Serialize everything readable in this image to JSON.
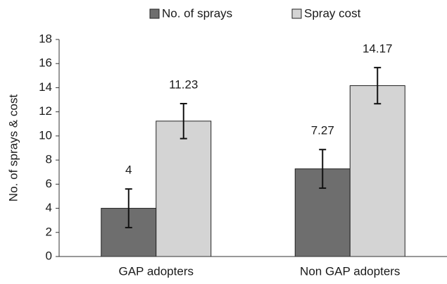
{
  "chart_data": {
    "type": "bar",
    "categories": [
      "GAP adopters",
      "Non GAP adopters"
    ],
    "series": [
      {
        "name": "No. of sprays",
        "color": "#6e6e6e",
        "values": [
          4,
          7.27
        ],
        "errors": [
          1.6,
          1.6
        ]
      },
      {
        "name": "Spray cost",
        "color": "#d4d4d4",
        "values": [
          11.23,
          14.17
        ],
        "errors": [
          1.45,
          1.5
        ]
      }
    ],
    "ylabel": "No. of sprays & cost",
    "ylim": [
      0,
      18
    ],
    "yticks": [
      0,
      2,
      4,
      6,
      8,
      10,
      12,
      14,
      16,
      18
    ],
    "legend": "top",
    "grid": false
  }
}
